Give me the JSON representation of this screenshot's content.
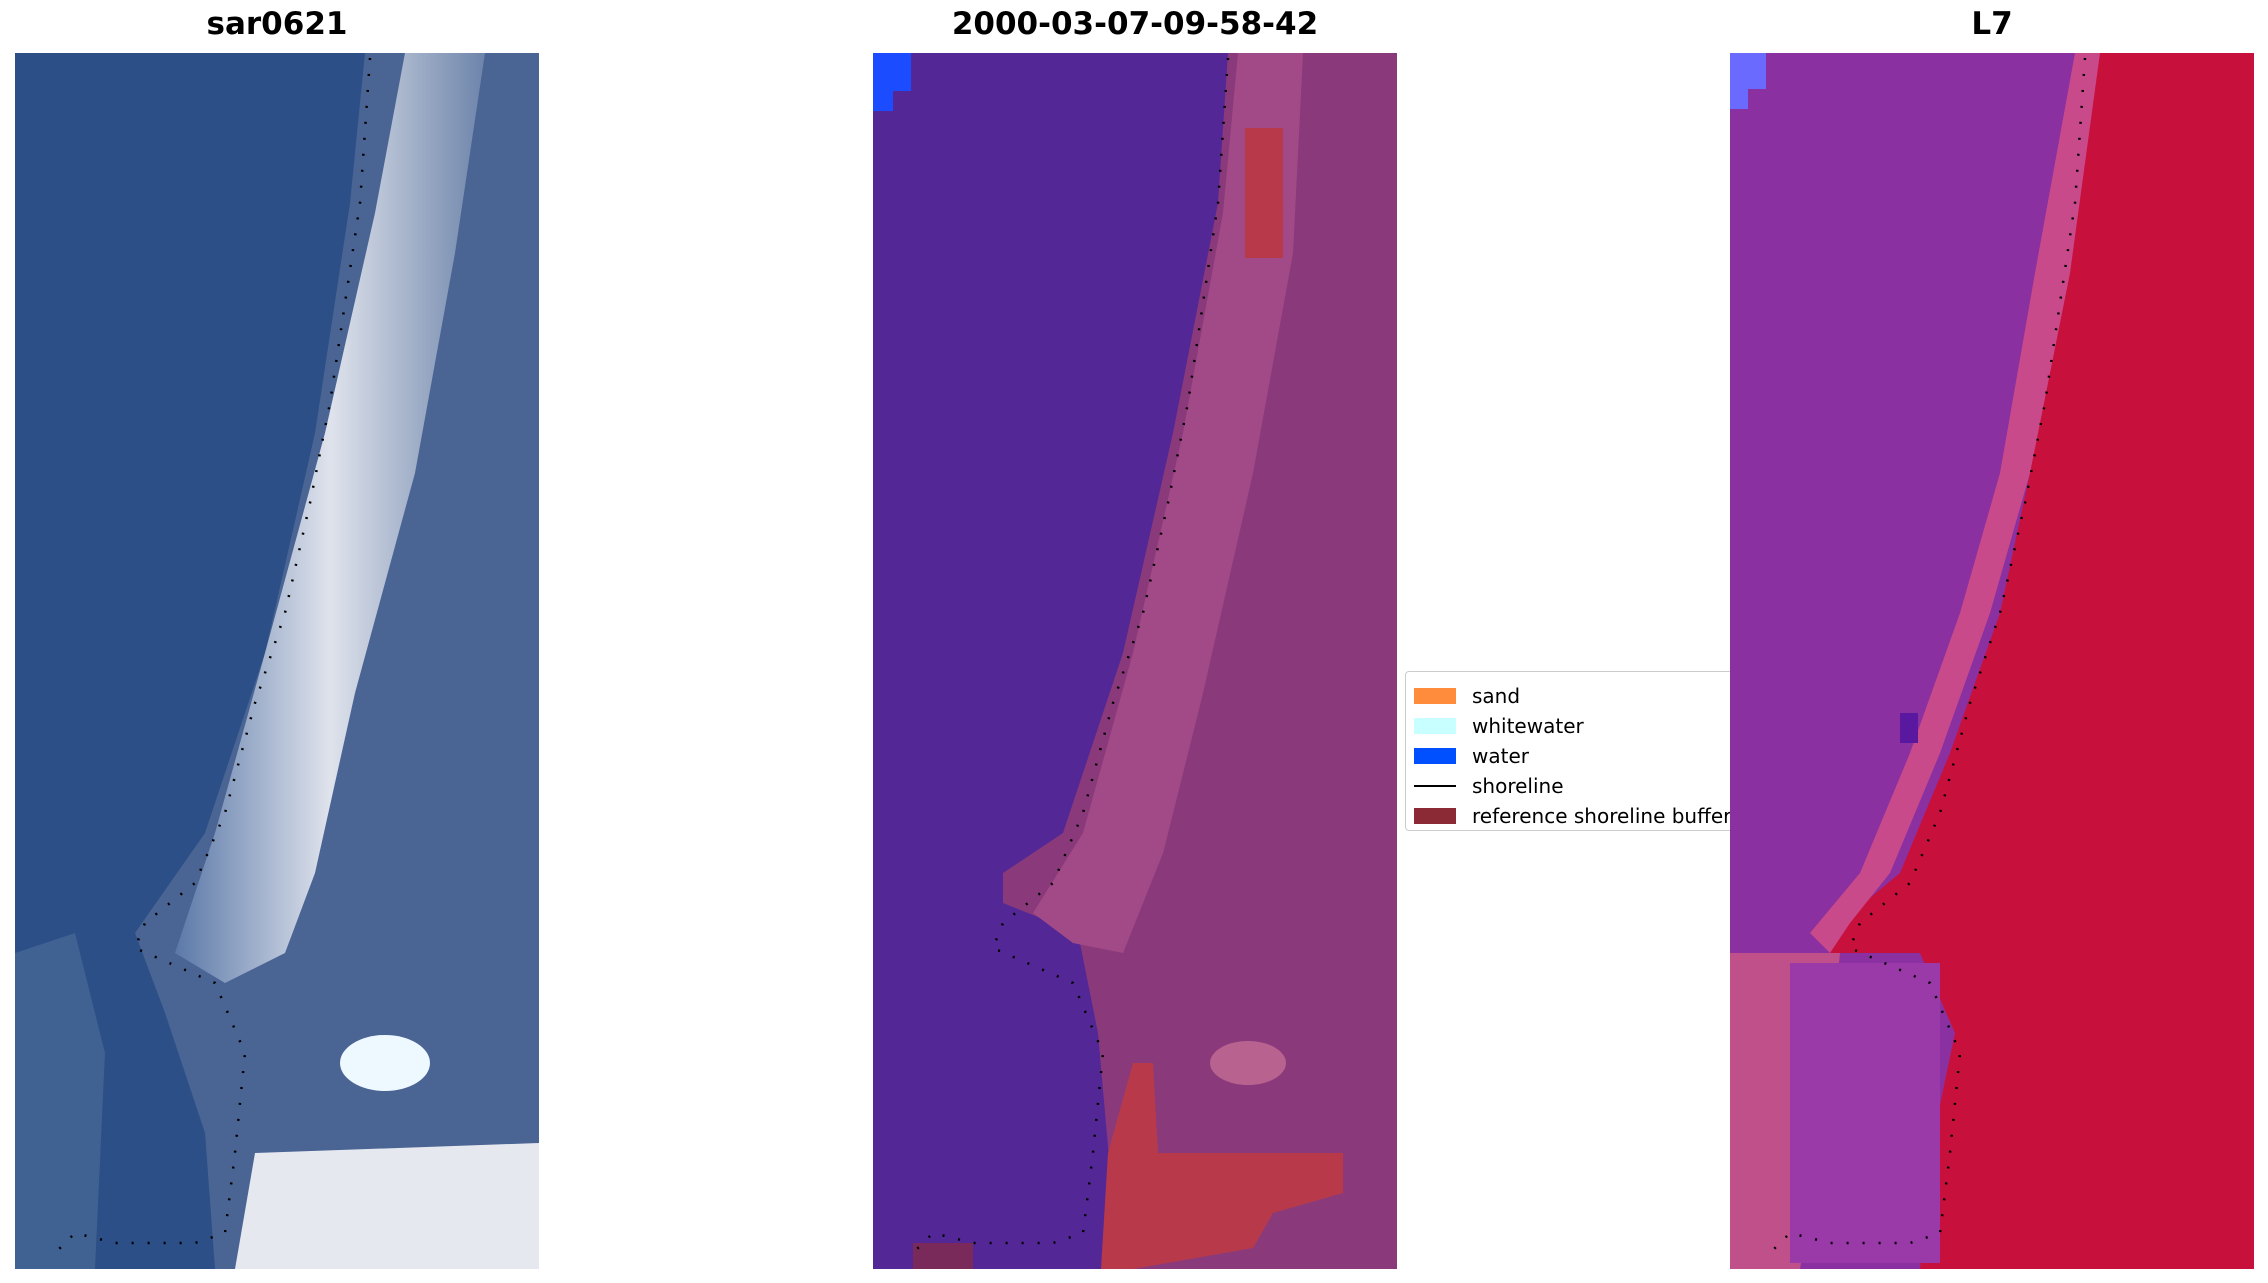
{
  "panels": [
    {
      "title": "sar0621"
    },
    {
      "title": "2000-03-07-09-58-42"
    },
    {
      "title": "L7"
    }
  ],
  "legend": {
    "items": [
      {
        "label": "sand",
        "color": "#ff8c3c"
      },
      {
        "label": "whitewater",
        "color": "#c8ffff"
      },
      {
        "label": "water",
        "color": "#0050ff"
      },
      {
        "label": "shoreline",
        "color": "#000000"
      },
      {
        "label": "reference shoreline buffer",
        "color": "#8b2a35"
      }
    ]
  },
  "colors": {
    "rgb_water": "#2b4f86",
    "rgb_beach": "#d8dde8",
    "class_water": "#532896",
    "class_land": "#8a3a7a",
    "class_buffer": "#b83a4a",
    "ndwi_water": "#8a30a0",
    "ndwi_land": "#c8103c"
  }
}
